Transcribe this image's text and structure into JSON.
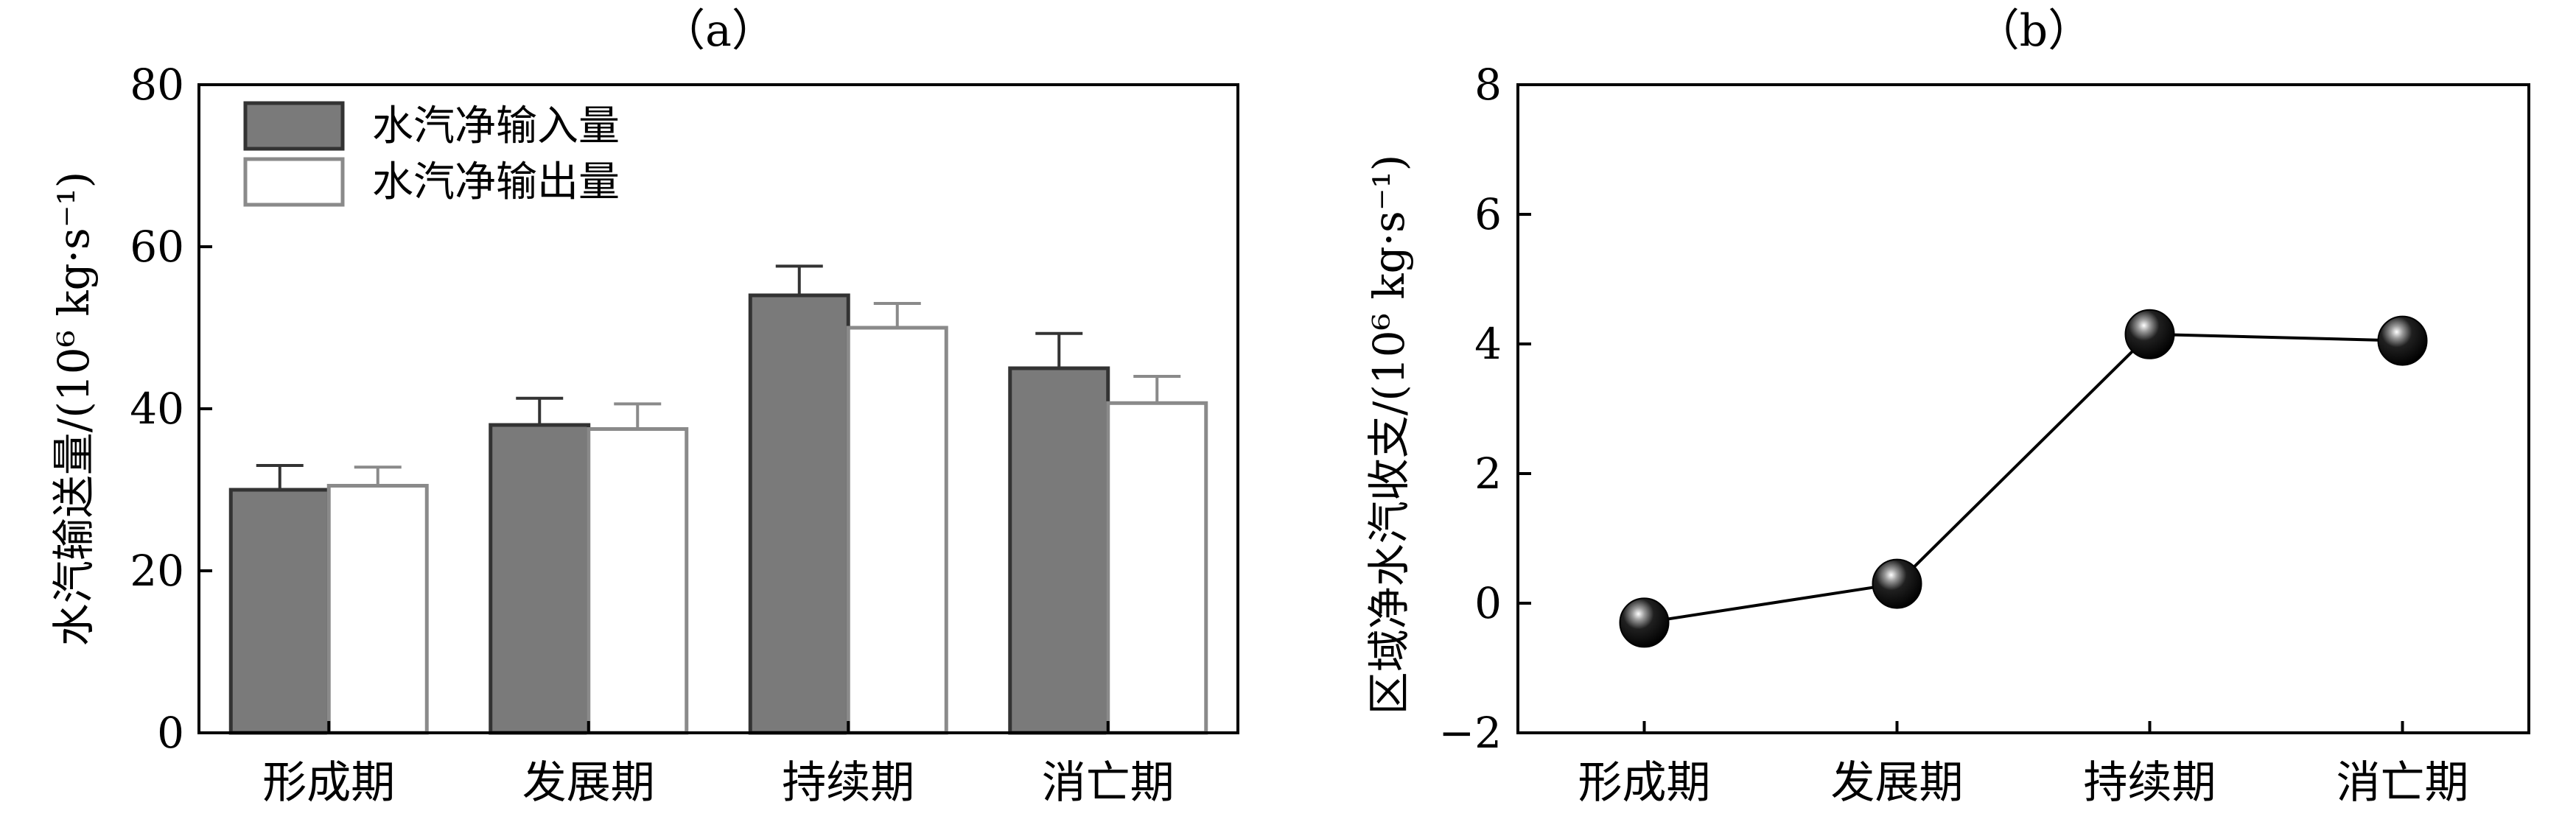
{
  "chart_data": [
    {
      "type": "bar",
      "title": "（a）",
      "ylabel": "水汽输送量/(10⁶ kg·s⁻¹)",
      "xlabel": "",
      "categories": [
        "形成期",
        "发展期",
        "持续期",
        "消亡期"
      ],
      "ylim": [
        0,
        80
      ],
      "yticks": [
        0,
        20,
        40,
        60,
        80
      ],
      "legend_position": "top-left",
      "series": [
        {
          "name": "水汽净输入量",
          "color": "#7a7a7a",
          "values": [
            30,
            38,
            54,
            45
          ],
          "errors": [
            3,
            3.3,
            3.6,
            4.3
          ]
        },
        {
          "name": "水汽净输出量",
          "color": "#ffffff",
          "values": [
            30.5,
            37.5,
            50,
            40.7
          ],
          "errors": [
            2.3,
            3.1,
            3,
            3.3
          ]
        }
      ]
    },
    {
      "type": "line",
      "title": "（b）",
      "ylabel": "区域净水汽收支/(10⁶ kg·s⁻¹)",
      "xlabel": "",
      "categories": [
        "形成期",
        "发展期",
        "持续期",
        "消亡期"
      ],
      "ylim": [
        -2,
        8
      ],
      "yticks": [
        -2,
        0,
        2,
        4,
        6,
        8
      ],
      "values": [
        -0.3,
        0.3,
        4.15,
        4.05
      ]
    }
  ]
}
